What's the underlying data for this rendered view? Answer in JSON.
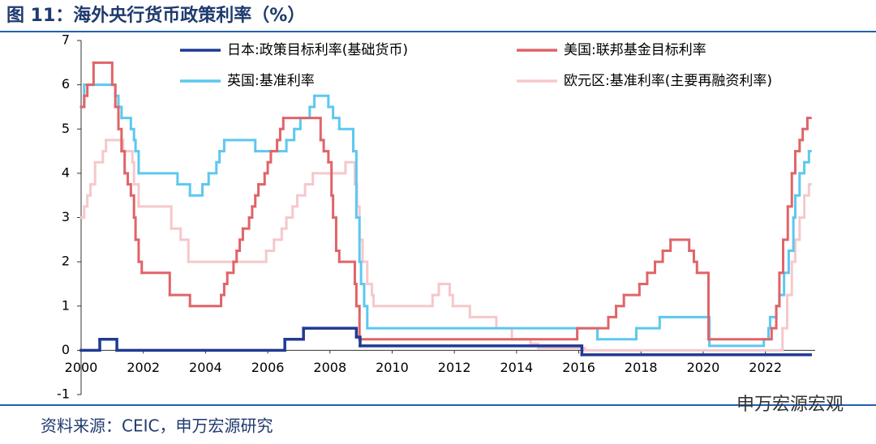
{
  "chart_data": {
    "type": "step-line",
    "title": "图 11：海外央行货币政策利率（%）",
    "source": "资料来源：CEIC，申万宏源研究",
    "watermark": "申万宏源宏观",
    "xlim": [
      2000,
      2023.6
    ],
    "ylim": [
      -1,
      7
    ],
    "xticks": [
      2000,
      2002,
      2004,
      2006,
      2008,
      2010,
      2012,
      2014,
      2016,
      2018,
      2020,
      2022
    ],
    "yticks": [
      -1,
      0,
      1,
      2,
      3,
      4,
      5,
      6,
      7
    ],
    "series": [
      {
        "name": "日本:政策目标利率(基础货币)",
        "color": "#1f3a93",
        "x": [
          2000.0,
          2000.6,
          2001.15,
          2006.55,
          2007.15,
          2008.85,
          2008.97,
          2016.1,
          2023.45
        ],
        "values": [
          0,
          0.25,
          0,
          0.25,
          0.5,
          0.3,
          0.1,
          -0.1,
          -0.1
        ]
      },
      {
        "name": "美国:联邦基金目标利率",
        "color": "#e06468",
        "x": [
          2000.0,
          2000.1,
          2000.2,
          2000.4,
          2001.0,
          2001.1,
          2001.2,
          2001.3,
          2001.4,
          2001.5,
          2001.6,
          2001.7,
          2001.75,
          2001.85,
          2001.95,
          2002.85,
          2003.5,
          2004.5,
          2004.6,
          2004.7,
          2004.9,
          2005.0,
          2005.1,
          2005.2,
          2005.4,
          2005.5,
          2005.6,
          2005.7,
          2005.9,
          2006.0,
          2006.1,
          2006.3,
          2006.4,
          2006.5,
          2007.7,
          2007.8,
          2007.95,
          2008.05,
          2008.1,
          2008.2,
          2008.3,
          2008.8,
          2008.85,
          2008.95,
          2015.95,
          2016.95,
          2017.2,
          2017.45,
          2017.95,
          2018.2,
          2018.45,
          2018.7,
          2018.95,
          2019.55,
          2019.7,
          2019.8,
          2020.17,
          2022.2,
          2022.35,
          2022.45,
          2022.57,
          2022.72,
          2022.85,
          2022.96,
          2023.1,
          2023.2,
          2023.35,
          2023.45
        ],
        "values": [
          5.5,
          5.75,
          6.0,
          6.5,
          6.0,
          5.5,
          5.0,
          4.5,
          4.0,
          3.75,
          3.5,
          3.0,
          2.5,
          2.0,
          1.75,
          1.25,
          1.0,
          1.25,
          1.5,
          1.75,
          2.0,
          2.25,
          2.5,
          2.75,
          3.0,
          3.25,
          3.5,
          3.75,
          4.0,
          4.25,
          4.5,
          4.75,
          5.0,
          5.25,
          4.75,
          4.5,
          4.25,
          3.5,
          3.0,
          2.25,
          2.0,
          1.5,
          1.0,
          0.25,
          0.5,
          0.75,
          1.0,
          1.25,
          1.5,
          1.75,
          2.0,
          2.25,
          2.5,
          2.25,
          2.0,
          1.75,
          0.25,
          0.5,
          1.0,
          1.75,
          2.5,
          3.25,
          4.0,
          4.5,
          4.75,
          5.0,
          5.25,
          5.25
        ]
      },
      {
        "name": "英国:基准利率",
        "color": "#5cc8f0",
        "x": [
          2000.0,
          2000.1,
          2001.1,
          2001.2,
          2001.3,
          2001.6,
          2001.7,
          2001.75,
          2001.85,
          2003.1,
          2003.5,
          2003.9,
          2004.1,
          2004.35,
          2004.45,
          2004.6,
          2005.6,
          2006.6,
          2006.85,
          2007.05,
          2007.35,
          2007.5,
          2007.95,
          2008.1,
          2008.3,
          2008.75,
          2008.85,
          2008.95,
          2009.0,
          2009.1,
          2009.2,
          2016.6,
          2017.85,
          2018.6,
          2020.2,
          2021.95,
          2022.1,
          2022.15,
          2022.35,
          2022.45,
          2022.6,
          2022.75,
          2022.9,
          2022.96,
          2023.1,
          2023.25,
          2023.4,
          2023.45
        ],
        "values": [
          5.5,
          6.0,
          5.75,
          5.5,
          5.25,
          5.0,
          4.75,
          4.5,
          4.0,
          3.75,
          3.5,
          3.75,
          4.0,
          4.25,
          4.5,
          4.75,
          4.5,
          4.75,
          5.0,
          5.25,
          5.5,
          5.75,
          5.5,
          5.25,
          5.0,
          4.5,
          3.0,
          2.0,
          1.5,
          1.0,
          0.5,
          0.25,
          0.5,
          0.75,
          0.1,
          0.25,
          0.5,
          0.75,
          1.0,
          1.25,
          1.75,
          2.25,
          3.0,
          3.5,
          4.0,
          4.25,
          4.5,
          4.5
        ]
      },
      {
        "name": "欧元区:基准利率(主要再融资利率)",
        "color": "#f6c8cb",
        "x": [
          2000.0,
          2000.1,
          2000.2,
          2000.3,
          2000.45,
          2000.7,
          2000.8,
          2001.35,
          2001.65,
          2001.7,
          2001.85,
          2002.9,
          2003.2,
          2003.45,
          2005.95,
          2006.2,
          2006.45,
          2006.6,
          2006.8,
          2006.95,
          2007.2,
          2007.45,
          2008.5,
          2008.8,
          2008.87,
          2008.95,
          2009.05,
          2009.2,
          2009.35,
          2009.4,
          2011.3,
          2011.5,
          2011.85,
          2011.95,
          2012.5,
          2013.35,
          2013.85,
          2014.45,
          2014.7,
          2016.2,
          2022.55,
          2022.7,
          2022.85,
          2022.96,
          2023.1,
          2023.25,
          2023.4,
          2023.45
        ],
        "values": [
          3.0,
          3.25,
          3.5,
          3.75,
          4.25,
          4.5,
          4.75,
          4.5,
          4.25,
          3.75,
          3.25,
          2.75,
          2.5,
          2.0,
          2.25,
          2.5,
          2.75,
          3.0,
          3.25,
          3.5,
          3.75,
          4.0,
          4.25,
          3.75,
          3.25,
          2.5,
          2.0,
          1.5,
          1.25,
          1.0,
          1.25,
          1.5,
          1.25,
          1.0,
          0.75,
          0.5,
          0.25,
          0.15,
          0.05,
          0,
          0.5,
          1.25,
          2.0,
          2.5,
          3.0,
          3.5,
          3.75,
          3.75
        ]
      }
    ]
  }
}
